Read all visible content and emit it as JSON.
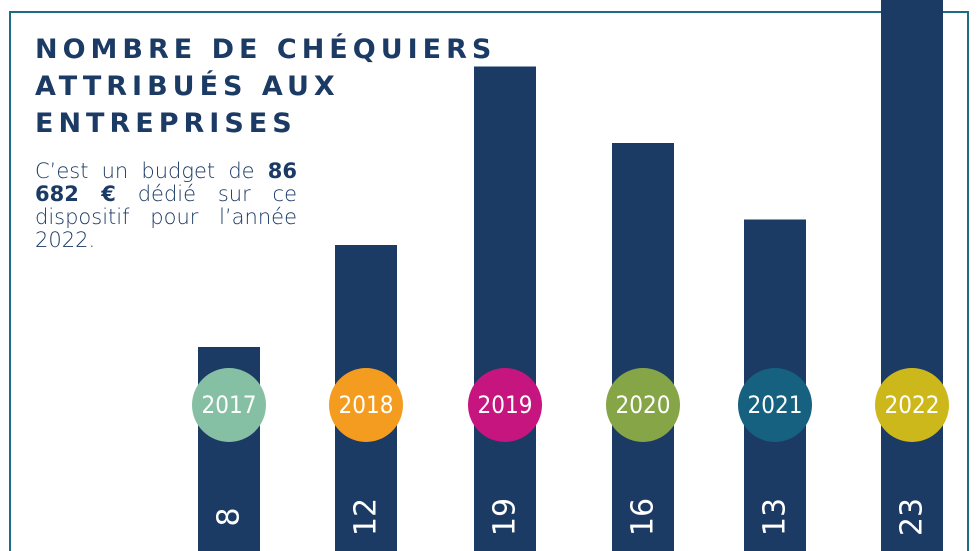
{
  "chart_data": {
    "type": "bar",
    "title": [
      "NOMBRE DE CHÉQUIERS",
      "ATTRIBUÉS AUX",
      "ENTREPRISES"
    ],
    "description": [
      "C’est un budget de ",
      "86 682 €",
      " dédié sur ce dispositif pour l’année 2022."
    ],
    "categories": [
      "2017",
      "2018",
      "2019",
      "2020",
      "2021",
      "2022"
    ],
    "values": [
      8,
      12,
      19,
      16,
      13,
      23
    ],
    "color": "#1b3a64",
    "category_colors": [
      "#86c0a4",
      "#f39c1f",
      "#c6157e",
      "#85a547",
      "#15617f",
      "#cdb81c"
    ]
  }
}
